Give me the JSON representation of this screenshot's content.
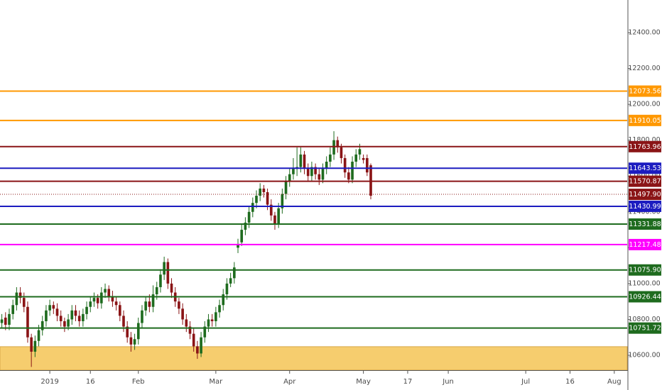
{
  "chart_data": {
    "type": "candlestick",
    "categories": [
      null,
      null,
      null,
      null,
      null,
      null,
      null,
      null,
      null,
      null,
      null,
      null,
      null,
      "2019",
      null,
      null,
      null,
      null,
      null,
      null,
      null,
      null,
      null,
      null,
      "16",
      null,
      null,
      null,
      null,
      null,
      null,
      null,
      null,
      null,
      null,
      null,
      null,
      "Feb",
      null,
      null,
      null,
      null,
      null,
      null,
      null,
      null,
      null,
      null,
      null,
      null,
      null,
      null,
      null,
      null,
      null,
      null,
      null,
      null,
      "Mar",
      null,
      null,
      null,
      null,
      null,
      null,
      null,
      null,
      null,
      null,
      null,
      null,
      null,
      null,
      null,
      null,
      null,
      null,
      null,
      "Apr",
      null,
      null,
      null,
      null,
      null,
      null,
      null,
      null,
      null,
      null,
      null,
      null,
      null,
      null,
      null,
      null,
      null,
      null,
      null,
      "May",
      null,
      null,
      null,
      null,
      null,
      null,
      null,
      null,
      null,
      null,
      null,
      "17",
      null,
      null,
      null,
      null,
      null,
      null,
      null,
      null,
      null,
      null,
      "Jun",
      null,
      null,
      null,
      null,
      null,
      null,
      null,
      null,
      null,
      null,
      null,
      null,
      null,
      null,
      null,
      null,
      null,
      null,
      null,
      null,
      "Jul",
      null,
      null,
      null,
      null,
      null,
      null,
      null,
      null,
      null,
      null,
      null,
      "16",
      null,
      null,
      null,
      null,
      null,
      null,
      null,
      null,
      null,
      null,
      null,
      "Aug",
      null,
      null,
      null
    ],
    "open": [
      10780,
      10810,
      10770,
      10830,
      10880,
      10950,
      10920,
      10870,
      10700,
      10620,
      10680,
      10740,
      10790,
      10850,
      10880,
      10860,
      10820,
      10790,
      10760,
      10800,
      10850,
      10820,
      10790,
      10830,
      10870,
      10900,
      10920,
      10890,
      10950,
      10970,
      10930,
      10900,
      10880,
      10820,
      10760,
      10700,
      10660,
      10690,
      10780,
      10850,
      10900,
      10870,
      10940,
      10980,
      11050,
      11120,
      11000,
      10950,
      10900,
      10860,
      10800,
      10760,
      10720,
      10650,
      10610,
      10700,
      10760,
      10800,
      10790,
      10840,
      10880,
      10940,
      11000,
      11030,
      11200,
      11230,
      11300,
      11340,
      11400,
      11450,
      11490,
      11530,
      11510,
      11440,
      11380,
      11330,
      11420,
      11500,
      11570,
      11610,
      11640,
      11650,
      11720,
      11640,
      11600,
      11650,
      11610,
      11580,
      11640,
      11680,
      11720,
      11800,
      11760,
      11700,
      11620,
      11580,
      11680,
      11720,
      11700,
      11700,
      11660,
      null,
      null,
      null,
      null,
      null,
      null,
      null,
      null,
      null,
      null,
      null,
      null,
      null,
      null,
      null,
      null,
      null,
      null,
      null,
      null,
      null,
      null,
      null,
      null,
      null,
      null,
      null,
      null,
      null,
      null,
      null,
      null,
      null,
      null,
      null,
      null,
      null,
      null,
      null,
      null,
      null,
      null,
      null,
      null,
      null,
      null,
      null,
      null,
      null,
      null,
      null,
      null,
      null,
      null,
      null,
      null,
      null,
      null,
      null,
      null,
      null,
      null,
      null,
      null,
      null,
      null,
      null,
      null,
      null
    ],
    "high": [
      10830,
      10840,
      10860,
      10910,
      10980,
      10980,
      10950,
      10900,
      10720,
      10710,
      10770,
      10820,
      10880,
      10910,
      10900,
      10890,
      10850,
      10810,
      10830,
      10880,
      10880,
      10850,
      10860,
      10900,
      10930,
      10950,
      10940,
      10980,
      11000,
      10990,
      10960,
      10930,
      10900,
      10850,
      10790,
      10730,
      10720,
      10810,
      10880,
      10930,
      10940,
      10990,
      11010,
      11080,
      11150,
      11140,
      11030,
      10980,
      10920,
      10890,
      10830,
      10790,
      10750,
      10680,
      10730,
      10790,
      10830,
      10830,
      10870,
      10910,
      10970,
      11030,
      11060,
      11120,
      11250,
      11330,
      11370,
      11430,
      11480,
      11520,
      11560,
      11550,
      11530,
      11470,
      11400,
      11450,
      11530,
      11600,
      11640,
      11700,
      11760,
      11760,
      11740,
      11670,
      11680,
      11670,
      11640,
      11670,
      11710,
      11760,
      11850,
      11820,
      11780,
      11720,
      11650,
      11710,
      11750,
      11780,
      11720,
      11720,
      11670,
      null,
      null,
      null,
      null,
      null,
      null,
      null,
      null,
      null,
      null,
      null,
      null,
      null,
      null,
      null,
      null,
      null,
      null,
      null,
      null,
      null,
      null,
      null,
      null,
      null,
      null,
      null,
      null,
      null,
      null,
      null,
      null,
      null,
      null,
      null,
      null,
      null,
      null,
      null,
      null,
      null,
      null,
      null,
      null,
      null,
      null,
      null,
      null,
      null,
      null,
      null,
      null,
      null,
      null,
      null,
      null,
      null,
      null,
      null,
      null,
      null,
      null,
      null,
      null,
      null,
      null,
      null,
      null,
      null
    ],
    "low": [
      10750,
      10740,
      10740,
      10800,
      10850,
      10890,
      10840,
      10670,
      10535,
      10590,
      10650,
      10710,
      10760,
      10820,
      10830,
      10790,
      10760,
      10730,
      10740,
      10770,
      10790,
      10760,
      10760,
      10800,
      10840,
      10870,
      10860,
      10860,
      10920,
      10900,
      10870,
      10850,
      10790,
      10730,
      10670,
      10620,
      10630,
      10660,
      10750,
      10820,
      10840,
      10840,
      10910,
      10950,
      11020,
      10970,
      10920,
      10870,
      10830,
      10770,
      10730,
      10690,
      10620,
      10580,
      10590,
      10670,
      10730,
      10760,
      10760,
      10810,
      10850,
      10910,
      10980,
      11000,
      11170,
      11210,
      11270,
      11310,
      11370,
      11420,
      11460,
      11480,
      11410,
      11350,
      11300,
      11310,
      11390,
      11470,
      11540,
      11580,
      11600,
      11620,
      11610,
      11570,
      11570,
      11580,
      11550,
      11560,
      11610,
      11650,
      11690,
      11730,
      11670,
      11590,
      11560,
      11560,
      11650,
      11690,
      11670,
      11600,
      11470,
      null,
      null,
      null,
      null,
      null,
      null,
      null,
      null,
      null,
      null,
      null,
      null,
      null,
      null,
      null,
      null,
      null,
      null,
      null,
      null,
      null,
      null,
      null,
      null,
      null,
      null,
      null,
      null,
      null,
      null,
      null,
      null,
      null,
      null,
      null,
      null,
      null,
      null,
      null,
      null,
      null,
      null,
      null,
      null,
      null,
      null,
      null,
      null,
      null,
      null,
      null,
      null,
      null,
      null,
      null,
      null,
      null,
      null,
      null,
      null,
      null,
      null,
      null,
      null,
      null,
      null,
      null,
      null,
      null
    ],
    "close": [
      10800,
      10770,
      10830,
      10880,
      10950,
      10920,
      10870,
      10700,
      10620,
      10680,
      10740,
      10790,
      10850,
      10880,
      10860,
      10820,
      10790,
      10760,
      10800,
      10850,
      10820,
      10790,
      10830,
      10870,
      10900,
      10920,
      10890,
      10950,
      10970,
      10930,
      10900,
      10880,
      10820,
      10760,
      10700,
      10660,
      10690,
      10780,
      10850,
      10900,
      10870,
      10940,
      10980,
      11050,
      11120,
      11000,
      10950,
      10900,
      10860,
      10800,
      10760,
      10720,
      10650,
      10610,
      10700,
      10760,
      10800,
      10790,
      10840,
      10880,
      10940,
      11000,
      11030,
      11090,
      11220,
      11300,
      11340,
      11400,
      11450,
      11490,
      11530,
      11510,
      11440,
      11380,
      11330,
      11420,
      11500,
      11570,
      11610,
      11640,
      11650,
      11720,
      11640,
      11600,
      11650,
      11610,
      11580,
      11640,
      11680,
      11720,
      11800,
      11760,
      11700,
      11620,
      11580,
      11680,
      11720,
      11750,
      11690,
      11620,
      11490,
      null,
      null,
      null,
      null,
      null,
      null,
      null,
      null,
      null,
      null,
      null,
      null,
      null,
      null,
      null,
      null,
      null,
      null,
      null,
      null,
      null,
      null,
      null,
      null,
      null,
      null,
      null,
      null,
      null,
      null,
      null,
      null,
      null,
      null,
      null,
      null,
      null,
      null,
      null,
      null,
      null,
      null,
      null,
      null,
      null,
      null,
      null,
      null,
      null,
      null,
      null,
      null,
      null,
      null,
      null,
      null,
      null,
      null,
      null,
      null,
      null,
      null,
      null,
      null,
      null,
      null,
      null,
      null,
      null
    ],
    "up_color": "#1e6b1e",
    "down_color": "#8a1416",
    "ylim": [
      10517,
      12582
    ],
    "yticks": [
      {
        "value": 10600,
        "label": "10600.00"
      },
      {
        "value": 10800,
        "label": "10800.00"
      },
      {
        "value": 11000,
        "label": "11000.00"
      },
      {
        "value": 11200,
        "label": "11200.00"
      },
      {
        "value": 11400,
        "label": "11400.00"
      },
      {
        "value": 11600,
        "label": "11600.00"
      },
      {
        "value": 11800,
        "label": "11800.00"
      },
      {
        "value": 12000,
        "label": "12000.00"
      },
      {
        "value": 12200,
        "label": "12200.00"
      },
      {
        "value": 12400,
        "label": "12400.00"
      }
    ],
    "zone": {
      "from": 10517,
      "to": 10648,
      "color": "#f6cd6e"
    },
    "levels": [
      {
        "value": 12073.56,
        "label": "12073.56",
        "color": "#ff9800"
      },
      {
        "value": 11910.05,
        "label": "11910.05",
        "color": "#ff9800"
      },
      {
        "value": 11763.96,
        "label": "11763.96",
        "color": "#8a1416"
      },
      {
        "value": 11643.53,
        "label": "11643.53",
        "color": "#1c1cc0"
      },
      {
        "value": 11570.87,
        "label": "11570.87",
        "color": "#8a1416"
      },
      {
        "value": 11497.9,
        "label": "11497.90",
        "color": "#8a1416",
        "style": "dotted"
      },
      {
        "value": 11430.99,
        "label": "11430.99",
        "color": "#1c1cc0"
      },
      {
        "value": 11331.88,
        "label": "11331.88",
        "color": "#1e6b1e"
      },
      {
        "value": 11217.48,
        "label": "11217.48",
        "color": "#ff00ff"
      },
      {
        "value": 11075.9,
        "label": "11075.90",
        "color": "#1e6b1e"
      },
      {
        "value": 10926.44,
        "label": "10926.44",
        "color": "#1e6b1e"
      },
      {
        "value": 10751.72,
        "label": "10751.72",
        "color": "#1e6b1e"
      }
    ]
  }
}
